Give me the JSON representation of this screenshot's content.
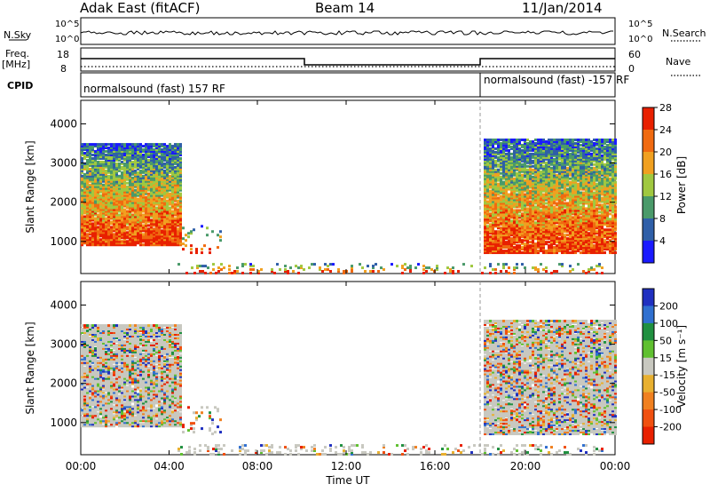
{
  "header": {
    "left_title": "Adak East (fitACF)",
    "center_title": "Beam 14",
    "right_title": "11/Jan/2014"
  },
  "noise_panel": {
    "left_label": "N.Sky",
    "right_label": "N.Search",
    "left_ticks": [
      "10^5",
      "10^0"
    ],
    "right_ticks": [
      "10^5",
      "10^0"
    ]
  },
  "freq_panel": {
    "left_label_line1": "Freq.",
    "left_label_line2": "[MHz]",
    "left_ticks": [
      "18",
      "8"
    ],
    "right_label": "Nave",
    "right_ticks": [
      "60",
      "0"
    ]
  },
  "cpid_panel": {
    "label": "CPID",
    "segment1": "normalsound (fast) 157 RF",
    "segment2": "normalsound (fast) -157 RF"
  },
  "chart_data": [
    {
      "type": "heatmap",
      "title": "",
      "panel": "power",
      "xlabel": "",
      "ylabel": "Slant Range [km]",
      "ylim": [
        180,
        4600
      ],
      "yticks": [
        "1000",
        "2000",
        "3000",
        "4000"
      ],
      "colorbar_label": "Power [dB]",
      "colorbar_ticks": [
        "4",
        "8",
        "12",
        "16",
        "20",
        "24",
        "28"
      ],
      "colorbar_range": [
        0,
        32
      ],
      "colors": [
        "#1a1aff",
        "#2f5fa8",
        "#4a9a6a",
        "#a0c840",
        "#f0a020",
        "#f06a10",
        "#e82000"
      ]
    },
    {
      "type": "heatmap",
      "title": "",
      "panel": "velocity",
      "xlabel": "Time UT",
      "ylabel": "Slant Range [km]",
      "ylim": [
        180,
        4600
      ],
      "yticks": [
        "1000",
        "2000",
        "3000",
        "4000"
      ],
      "xticks": [
        "00:00",
        "04:00",
        "08:00",
        "12:00",
        "16:00",
        "20:00",
        "00:00"
      ],
      "colorbar_label": "Velocity [m s⁻¹]",
      "colorbar_ticks": [
        "200",
        "100",
        "50",
        "15",
        "-15",
        "-50",
        "-100",
        "-200"
      ],
      "colors": [
        "#2030c0",
        "#3070d0",
        "#209040",
        "#60c030",
        "#c8c8c0",
        "#e8b030",
        "#f08020",
        "#f05010",
        "#e82000"
      ]
    }
  ]
}
